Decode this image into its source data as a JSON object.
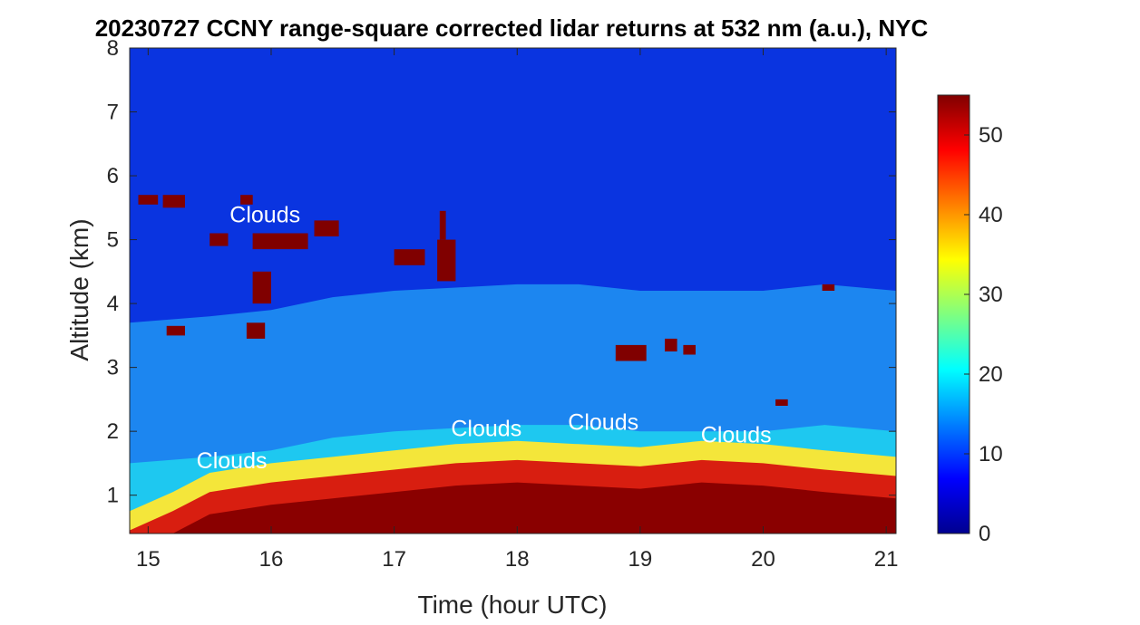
{
  "chart_data": {
    "type": "heatmap",
    "title": "20230727 CCNY range-square corrected lidar returns at 532 nm (a.u.), NYC",
    "xlabel": "Time (hour UTC)",
    "ylabel": "Altitude (km)",
    "xlim": [
      14.85,
      21.08
    ],
    "ylim": [
      0.4,
      8
    ],
    "xticks": [
      15,
      16,
      17,
      18,
      19,
      20,
      21
    ],
    "yticks": [
      1,
      2,
      3,
      4,
      5,
      6,
      7,
      8
    ],
    "colorbar": {
      "range": [
        0,
        55
      ],
      "ticks": [
        0,
        10,
        20,
        30,
        40,
        50
      ],
      "colormap": "jet"
    },
    "annotations": [
      {
        "text": "Clouds",
        "x": 15.95,
        "y": 5.4
      },
      {
        "text": "Clouds",
        "x": 15.68,
        "y": 1.55
      },
      {
        "text": "Clouds",
        "x": 17.75,
        "y": 2.05
      },
      {
        "text": "Clouds",
        "x": 18.7,
        "y": 2.15
      },
      {
        "text": "Clouds",
        "x": 19.78,
        "y": 1.95
      }
    ],
    "aerosol_layer_top_km": [
      {
        "x": 14.85,
        "y": 1.5
      },
      {
        "x": 15.5,
        "y": 1.6
      },
      {
        "x": 16.0,
        "y": 1.7
      },
      {
        "x": 16.5,
        "y": 1.9
      },
      {
        "x": 17.0,
        "y": 2.0
      },
      {
        "x": 17.5,
        "y": 2.05
      },
      {
        "x": 18.0,
        "y": 2.1
      },
      {
        "x": 18.5,
        "y": 2.1
      },
      {
        "x": 19.0,
        "y": 2.0
      },
      {
        "x": 19.5,
        "y": 2.0
      },
      {
        "x": 20.0,
        "y": 2.0
      },
      {
        "x": 20.5,
        "y": 2.1
      },
      {
        "x": 21.08,
        "y": 2.0
      }
    ],
    "boundary_layer_top_km": [
      {
        "x": 14.85,
        "y": 0.45
      },
      {
        "x": 15.2,
        "y": 0.75
      },
      {
        "x": 15.5,
        "y": 1.05
      },
      {
        "x": 16.0,
        "y": 1.2
      },
      {
        "x": 16.5,
        "y": 1.3
      },
      {
        "x": 17.0,
        "y": 1.4
      },
      {
        "x": 17.5,
        "y": 1.5
      },
      {
        "x": 18.0,
        "y": 1.55
      },
      {
        "x": 18.5,
        "y": 1.5
      },
      {
        "x": 19.0,
        "y": 1.45
      },
      {
        "x": 19.5,
        "y": 1.55
      },
      {
        "x": 20.0,
        "y": 1.5
      },
      {
        "x": 20.5,
        "y": 1.4
      },
      {
        "x": 21.08,
        "y": 1.3
      }
    ],
    "cloud_patches_km": [
      {
        "t0": 14.92,
        "t1": 15.08,
        "z0": 5.55,
        "z1": 5.7
      },
      {
        "t0": 15.12,
        "t1": 15.3,
        "z0": 5.5,
        "z1": 5.7
      },
      {
        "t0": 15.15,
        "t1": 15.3,
        "z0": 3.5,
        "z1": 3.65
      },
      {
        "t0": 15.5,
        "t1": 15.65,
        "z0": 4.9,
        "z1": 5.1
      },
      {
        "t0": 15.75,
        "t1": 15.85,
        "z0": 5.55,
        "z1": 5.7
      },
      {
        "t0": 15.85,
        "t1": 16.3,
        "z0": 4.85,
        "z1": 5.1
      },
      {
        "t0": 15.85,
        "t1": 16.0,
        "z0": 4.0,
        "z1": 4.5
      },
      {
        "t0": 15.8,
        "t1": 15.95,
        "z0": 3.45,
        "z1": 3.7
      },
      {
        "t0": 16.35,
        "t1": 16.55,
        "z0": 5.05,
        "z1": 5.3
      },
      {
        "t0": 17.0,
        "t1": 17.25,
        "z0": 4.6,
        "z1": 4.85
      },
      {
        "t0": 17.35,
        "t1": 17.5,
        "z0": 4.35,
        "z1": 5.0
      },
      {
        "t0": 17.37,
        "t1": 17.42,
        "z0": 5.0,
        "z1": 5.45
      },
      {
        "t0": 18.8,
        "t1": 19.05,
        "z0": 3.1,
        "z1": 3.35
      },
      {
        "t0": 19.2,
        "t1": 19.3,
        "z0": 3.25,
        "z1": 3.45
      },
      {
        "t0": 19.35,
        "t1": 19.45,
        "z0": 3.2,
        "z1": 3.35
      },
      {
        "t0": 20.1,
        "t1": 20.2,
        "z0": 2.4,
        "z1": 2.5
      },
      {
        "t0": 20.48,
        "t1": 20.58,
        "z0": 4.2,
        "z1": 4.3
      }
    ]
  }
}
